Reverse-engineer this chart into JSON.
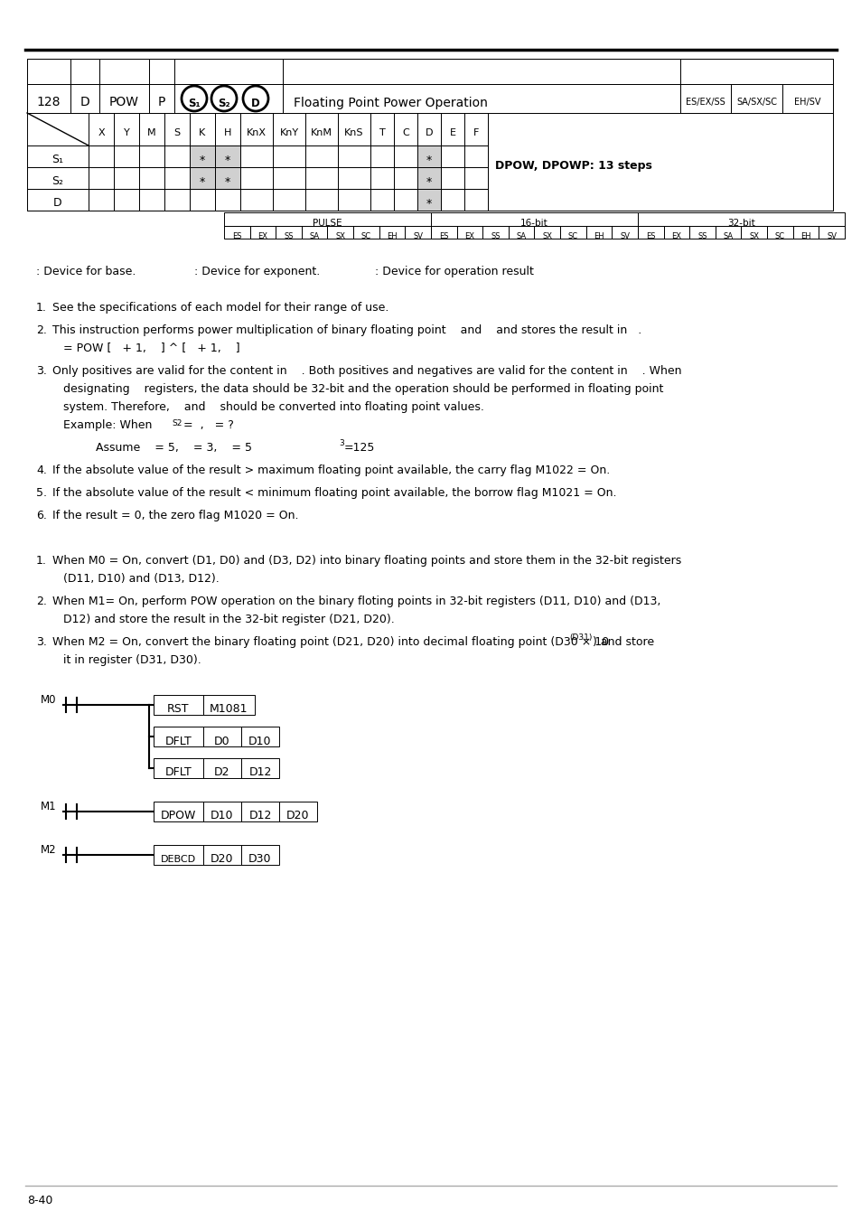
{
  "page_number": "8-40",
  "instruction_number": "128",
  "instruction_type": "D",
  "instruction_name": "POW",
  "instruction_variant": "P",
  "description": "Floating Point Power Operation",
  "compat_labels": [
    "ES/EX/SS",
    "SA/SX/SC",
    "EH/SV"
  ],
  "table_headers": [
    "X",
    "Y",
    "M",
    "S",
    "K",
    "H",
    "KnX",
    "KnY",
    "KnM",
    "KnS",
    "T",
    "C",
    "D",
    "E",
    "F"
  ],
  "table_note": "DPOW, DPOWP: 13 steps",
  "row_labels": [
    "S₁",
    "S₂",
    "D"
  ],
  "star_cols": {
    "0": [
      4,
      5,
      12
    ],
    "1": [
      4,
      5,
      12
    ],
    "2": [
      12
    ]
  },
  "section_labels": [
    "PULSE",
    "16-bit",
    "32-bit"
  ],
  "sub_labels": [
    "ES",
    "EX",
    "SS",
    "SA",
    "SX",
    "SC",
    "EH",
    "SV"
  ],
  "background_color": "#ffffff"
}
